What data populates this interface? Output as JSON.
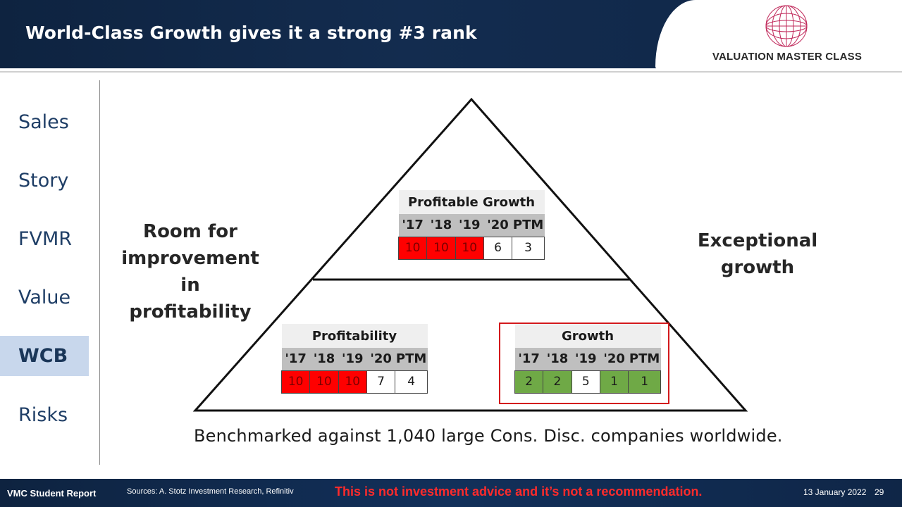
{
  "header": {
    "title": "World-Class Growth gives it a strong #3 rank",
    "logo_text": "VALUATION MASTER CLASS",
    "logo_icon": "globe-icon"
  },
  "sidebar": {
    "items": [
      {
        "label": "Sales",
        "active": false
      },
      {
        "label": "Story",
        "active": false
      },
      {
        "label": "FVMR",
        "active": false
      },
      {
        "label": "Value",
        "active": false
      },
      {
        "label": "WCB",
        "active": true
      },
      {
        "label": "Risks",
        "active": false
      }
    ]
  },
  "diagram": {
    "left_caption": [
      "Room for",
      "improvement",
      "in profitability"
    ],
    "right_caption": [
      "Exceptional",
      "growth"
    ],
    "tables": {
      "profitable_growth": {
        "title": "Profitable Growth",
        "headers": [
          "'17",
          "'18",
          "'19",
          "'20",
          "PTM"
        ],
        "values": [
          "10",
          "10",
          "10",
          "6",
          "3"
        ],
        "colors": [
          "red",
          "red",
          "red",
          "white",
          "white"
        ]
      },
      "profitability": {
        "title": "Profitability",
        "headers": [
          "'17",
          "'18",
          "'19",
          "'20",
          "PTM"
        ],
        "values": [
          "10",
          "10",
          "10",
          "7",
          "4"
        ],
        "colors": [
          "red",
          "red",
          "red",
          "white",
          "white"
        ]
      },
      "growth": {
        "title": "Growth",
        "headers": [
          "'17",
          "'18",
          "'19",
          "'20",
          "PTM"
        ],
        "values": [
          "2",
          "2",
          "5",
          "1",
          "1"
        ],
        "colors": [
          "green",
          "green",
          "white",
          "green",
          "green"
        ]
      }
    },
    "benchmark": "Benchmarked against 1,040 large Cons. Disc. companies worldwide."
  },
  "colors": {
    "header_bg": "#132c4f",
    "red_cell": "#ff0000",
    "green_cell": "#6fa946",
    "highlight_border": "#d3191c",
    "warning_text": "#ff2b2b"
  },
  "footer": {
    "report_label": "VMC Student Report",
    "sources": "Sources: A. Stotz Investment Research, Refinitiv",
    "warning": "This is not investment advice and it’s not a recommendation.",
    "date": "13 January 2022",
    "page": "29"
  }
}
